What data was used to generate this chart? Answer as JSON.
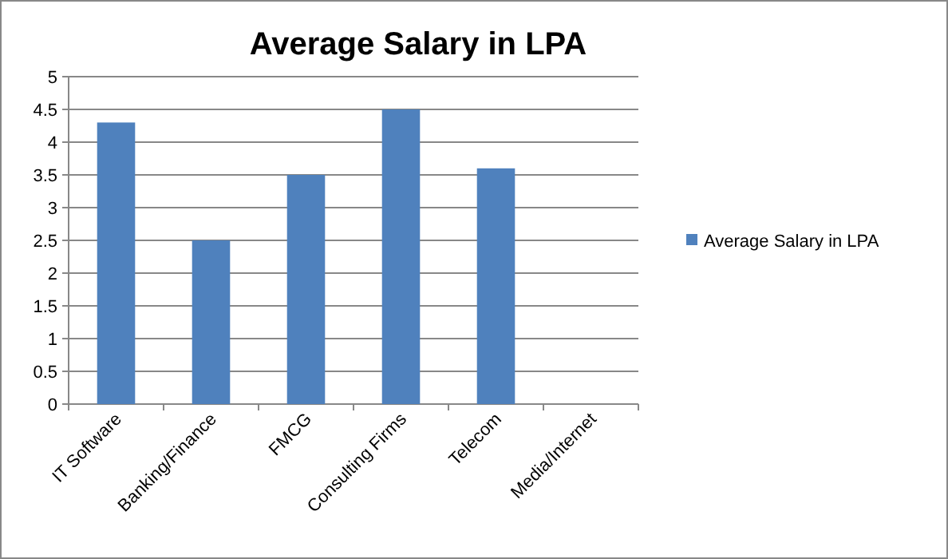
{
  "chart_data": {
    "type": "bar",
    "title": "Average Salary in LPA",
    "categories": [
      "IT Software",
      "Banking/Finance",
      "FMCG",
      "Consulting Firms",
      "Telecom",
      "Media/Internet"
    ],
    "series": [
      {
        "name": "Average Salary in LPA",
        "color": "#4f81bd",
        "values": [
          4.3,
          2.5,
          3.5,
          4.5,
          3.6,
          null
        ]
      }
    ],
    "ylim": [
      0,
      5
    ],
    "yticks": [
      0,
      0.5,
      1,
      1.5,
      2,
      2.5,
      3,
      3.5,
      4,
      4.5,
      5
    ],
    "grid": "y",
    "legend": "right"
  }
}
